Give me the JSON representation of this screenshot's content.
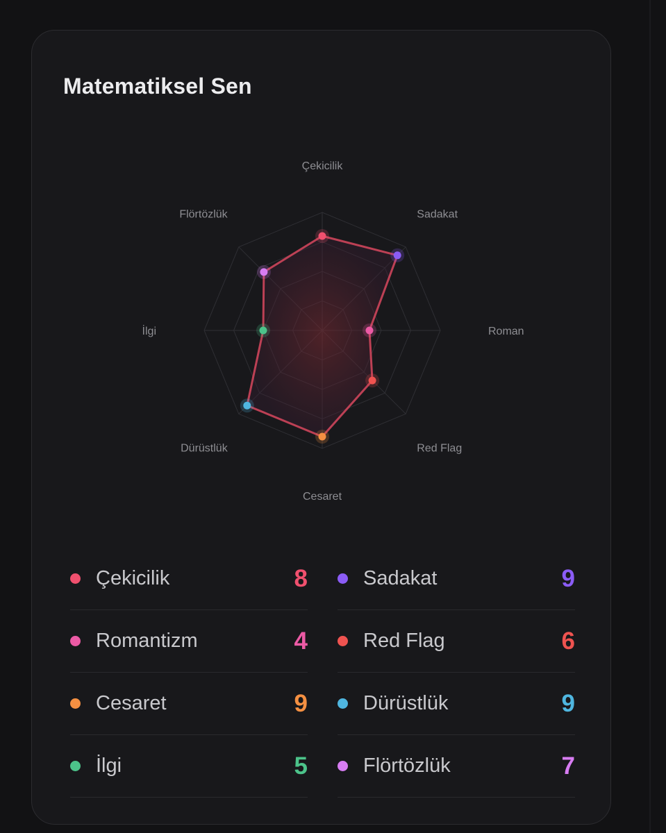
{
  "card": {
    "title": "Matematiksel Sen"
  },
  "chart_data": {
    "type": "radar",
    "title": "Matematiksel Sen",
    "range": [
      0,
      10
    ],
    "grid": true,
    "categories": [
      "Çekicilik",
      "Sadakat",
      "Roman",
      "Red Flag",
      "Cesaret",
      "Dürüstlük",
      "İlgi",
      "Flörtözlük"
    ],
    "values": [
      8,
      9,
      4,
      6,
      9,
      9,
      5,
      7
    ],
    "colors": [
      "#f0506e",
      "#8b5cf6",
      "#ec5aa5",
      "#ef5350",
      "#f59042",
      "#4fb6e0",
      "#4cc38a",
      "#d77cf2"
    ],
    "line_color": "#d8485e"
  },
  "legend": [
    {
      "label": "Çekicilik",
      "value": "8",
      "color": "#f0506e"
    },
    {
      "label": "Sadakat",
      "value": "9",
      "color": "#8b5cf6"
    },
    {
      "label": "Romantizm",
      "value": "4",
      "color": "#ec5aa5"
    },
    {
      "label": "Red Flag",
      "value": "6",
      "color": "#ef5350"
    },
    {
      "label": "Cesaret",
      "value": "9",
      "color": "#f59042"
    },
    {
      "label": "Dürüstlük",
      "value": "9",
      "color": "#4fb6e0"
    },
    {
      "label": "İlgi",
      "value": "5",
      "color": "#4cc38a"
    },
    {
      "label": "Flörtözlük",
      "value": "7",
      "color": "#d77cf2"
    }
  ]
}
